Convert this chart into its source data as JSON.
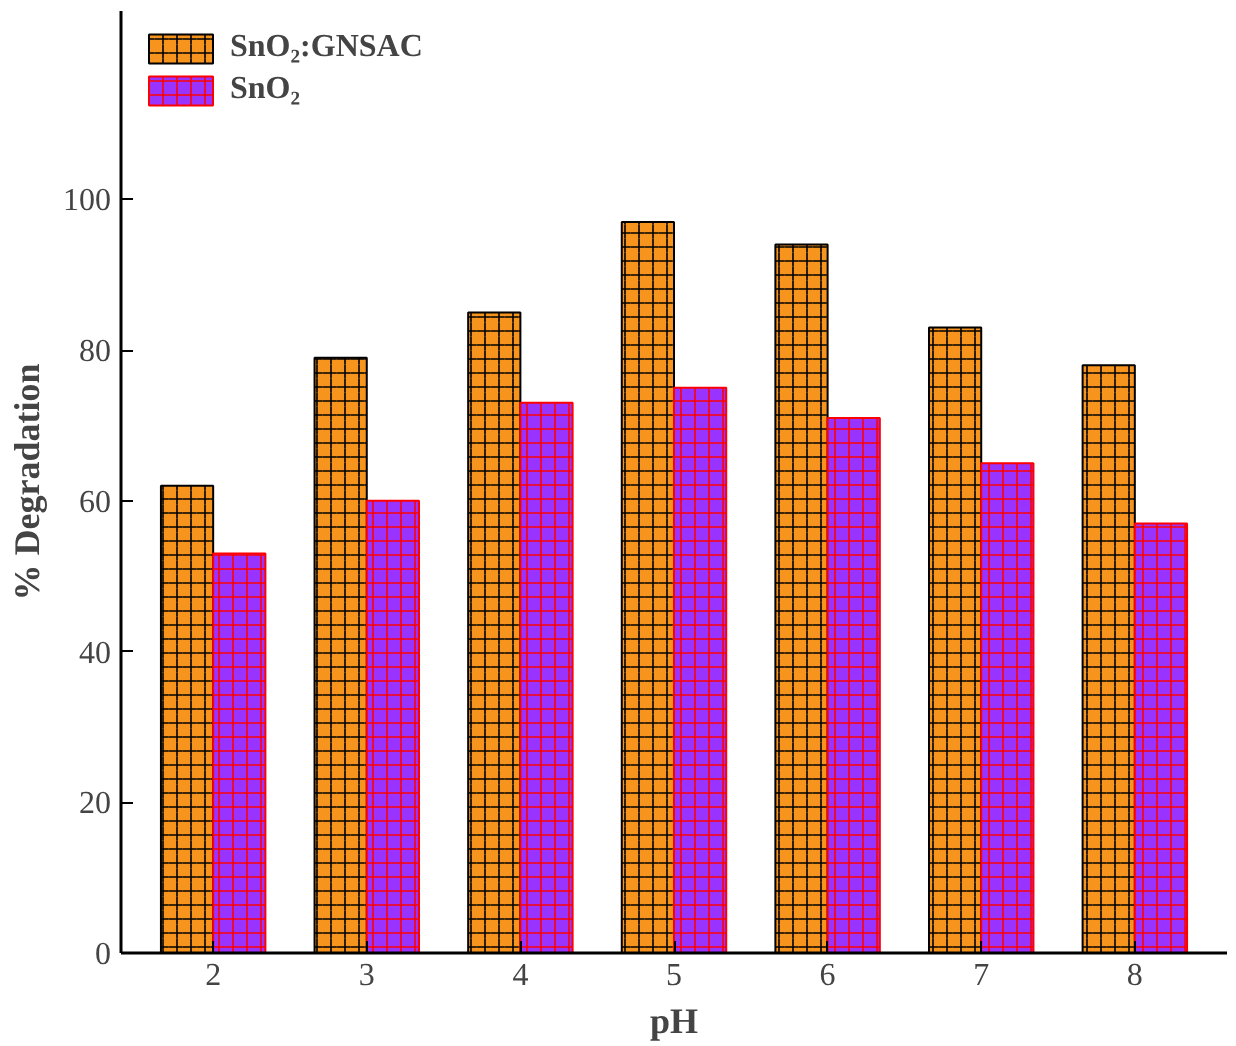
{
  "chart_data": {
    "type": "bar",
    "xlabel": "pH",
    "ylabel": "% Degradation",
    "categories": [
      "2",
      "3",
      "4",
      "5",
      "6",
      "7",
      "8"
    ],
    "series": [
      {
        "name": "SnO₂:GNSAC",
        "color": "#f7941d",
        "values": [
          62,
          79,
          85,
          97,
          94,
          83,
          78
        ]
      },
      {
        "name": "SnO₂",
        "color": "#9933ff",
        "values": [
          53,
          60,
          73,
          75,
          71,
          65,
          57
        ]
      }
    ],
    "ylim": [
      0,
      125
    ],
    "yticks": [
      0,
      20,
      40,
      60,
      80,
      100
    ],
    "grid": false,
    "legend": "top left"
  }
}
